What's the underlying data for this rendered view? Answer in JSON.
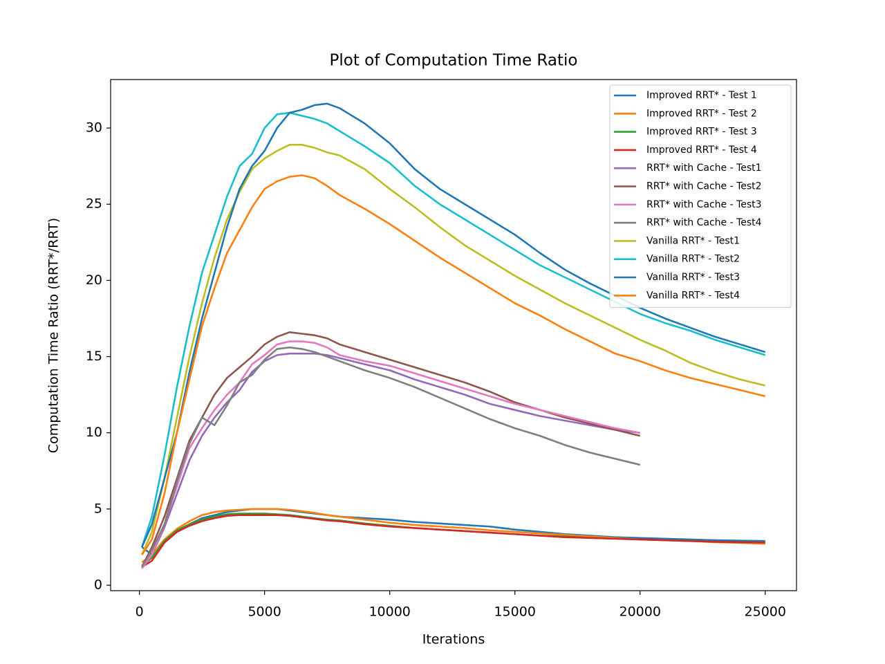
{
  "chart_data": {
    "type": "line",
    "title": "Plot of Computation Time Ratio",
    "x_label": "Iterations",
    "y_label": "Computation Time Ratio (RRT*/RRT)",
    "x": [
      100,
      500,
      1000,
      1500,
      2000,
      2500,
      3000,
      3500,
      4000,
      4500,
      5000,
      5500,
      6000,
      6500,
      7000,
      7500,
      8000,
      9000,
      10000,
      11000,
      12000,
      13000,
      14000,
      15000,
      16000,
      17000,
      18000,
      19000,
      20000,
      21000,
      22000,
      23000,
      24000,
      25000
    ],
    "xlim": [
      -1150,
      26250
    ],
    "xticks": [
      0,
      5000,
      10000,
      15000,
      20000,
      25000
    ],
    "ylim": [
      -0.36,
      33.18
    ],
    "yticks": [
      0,
      5,
      10,
      15,
      20,
      25,
      30
    ],
    "grid": false,
    "legend": "upper right",
    "series": [
      {
        "name": "Improved RRT* - Test 1",
        "color": "#1f77b4",
        "values": [
          2.5,
          2,
          2.8,
          3.5,
          4,
          4.4,
          4.6,
          4.8,
          4.9,
          5,
          5,
          5,
          4.9,
          4.8,
          4.7,
          4.6,
          4.5,
          4.4,
          4.3,
          4.15,
          4.05,
          3.95,
          3.85,
          3.65,
          3.5,
          3.35,
          3.25,
          3.15,
          3.1,
          3.05,
          3,
          2.95,
          2.92,
          2.9
        ]
      },
      {
        "name": "Improved RRT* - Test 2",
        "color": "#ff7f0e",
        "values": [
          1.5,
          2,
          3,
          3.7,
          4.2,
          4.6,
          4.8,
          4.9,
          4.95,
          5,
          5,
          5,
          4.95,
          4.85,
          4.75,
          4.6,
          4.5,
          4.3,
          4.1,
          3.95,
          3.85,
          3.75,
          3.6,
          3.5,
          3.4,
          3.3,
          3.2,
          3.1,
          3,
          2.95,
          2.9,
          2.82,
          2.78,
          2.72
        ]
      },
      {
        "name": "Improved RRT* - Test 3",
        "color": "#2ca02c",
        "values": [
          1.3,
          1.8,
          2.9,
          3.6,
          4,
          4.3,
          4.5,
          4.65,
          4.7,
          4.7,
          4.7,
          4.65,
          4.6,
          4.5,
          4.4,
          4.3,
          4.25,
          4.05,
          3.9,
          3.75,
          3.65,
          3.55,
          3.45,
          3.35,
          3.25,
          3.2,
          3.1,
          3.05,
          3,
          2.95,
          2.9,
          2.85,
          2.82,
          2.8
        ]
      },
      {
        "name": "Improved RRT* - Test 4",
        "color": "#d62728",
        "values": [
          1.2,
          1.6,
          2.8,
          3.5,
          3.9,
          4.2,
          4.4,
          4.55,
          4.6,
          4.6,
          4.6,
          4.6,
          4.55,
          4.45,
          4.35,
          4.25,
          4.2,
          4,
          3.85,
          3.75,
          3.65,
          3.55,
          3.45,
          3.35,
          3.25,
          3.15,
          3.1,
          3.05,
          3,
          2.95,
          2.9,
          2.85,
          2.82,
          2.8
        ]
      },
      {
        "name": "RRT* with Cache - Test1",
        "color": "#9467bd",
        "values": [
          1.1,
          2,
          3.8,
          6,
          8.2,
          9.8,
          11,
          12,
          12.8,
          14,
          14.7,
          15.1,
          15.2,
          15.2,
          15.2,
          15.1,
          14.9,
          14.5,
          14.1,
          13.5,
          13,
          12.5,
          11.9,
          11.5,
          11.1,
          10.8,
          10.5,
          10.2,
          10,
          null,
          null,
          null,
          null,
          null
        ]
      },
      {
        "name": "RRT* with Cache - Test2",
        "color": "#8c564b",
        "values": [
          1.2,
          2.5,
          4.5,
          7,
          9.5,
          11,
          12.5,
          13.6,
          14.3,
          15,
          15.8,
          16.3,
          16.6,
          16.5,
          16.4,
          16.2,
          15.8,
          15.3,
          14.8,
          14.3,
          13.8,
          13.3,
          12.7,
          12,
          11.5,
          11,
          10.6,
          10.2,
          9.8,
          null,
          null,
          null,
          null,
          null
        ]
      },
      {
        "name": "RRT* with Cache - Test3",
        "color": "#e377c2",
        "values": [
          1.1,
          2,
          4,
          6.5,
          9,
          10.3,
          11.5,
          12.5,
          13.3,
          14.5,
          15.1,
          15.8,
          16,
          16,
          15.9,
          15.6,
          15.1,
          14.7,
          14.4,
          13.9,
          13.4,
          12.9,
          12.4,
          11.9,
          11.5,
          11.1,
          10.7,
          10.3,
          10,
          null,
          null,
          null,
          null,
          null
        ]
      },
      {
        "name": "RRT* with Cache - Test4",
        "color": "#7f7f7f",
        "values": [
          1.2,
          2.3,
          4,
          6.8,
          9.3,
          11,
          10.5,
          11.8,
          13.3,
          13.8,
          14.8,
          15.5,
          15.6,
          15.5,
          15.3,
          15,
          14.7,
          14.1,
          13.6,
          13,
          12.3,
          11.6,
          10.9,
          10.3,
          9.8,
          9.2,
          8.7,
          8.3,
          7.9,
          null,
          null,
          null,
          null,
          null
        ]
      },
      {
        "name": "Vanilla RRT* - Test1",
        "color": "#bcbd22",
        "values": [
          2,
          3.5,
          7,
          11,
          15,
          18.5,
          21.5,
          24,
          25.8,
          27.3,
          28,
          28.5,
          28.9,
          28.9,
          28.7,
          28.4,
          28.2,
          27.3,
          26,
          24.8,
          23.5,
          22.3,
          21.3,
          20.3,
          19.4,
          18.5,
          17.7,
          16.9,
          16.1,
          15.4,
          14.6,
          14,
          13.5,
          13.1
        ]
      },
      {
        "name": "Vanilla RRT* - Test2",
        "color": "#17becf",
        "values": [
          2.5,
          4.5,
          8.5,
          13,
          17,
          20.5,
          23,
          25.5,
          27.5,
          28.3,
          30,
          30.9,
          31,
          30.8,
          30.6,
          30.3,
          29.8,
          28.8,
          27.7,
          26.2,
          25,
          24,
          23,
          22,
          21,
          20.2,
          19.4,
          18.6,
          17.8,
          17.2,
          16.7,
          16.1,
          15.6,
          15.1
        ]
      },
      {
        "name": "Vanilla RRT* - Test3",
        "color": "#1f77b4",
        "values": [
          2.5,
          4,
          7,
          10,
          14,
          17.5,
          20.5,
          23.5,
          26,
          27.5,
          28.5,
          30,
          31,
          31.2,
          31.5,
          31.6,
          31.3,
          30.3,
          29,
          27.3,
          26,
          25,
          24,
          23,
          21.8,
          20.7,
          19.8,
          19,
          18.2,
          17.5,
          16.9,
          16.3,
          15.8,
          15.3
        ]
      },
      {
        "name": "Vanilla RRT* - Test4",
        "color": "#ff7f0e",
        "values": [
          2,
          3,
          6,
          10,
          13.5,
          17,
          19.5,
          21.8,
          23.3,
          24.8,
          26,
          26.5,
          26.8,
          26.9,
          26.7,
          26.2,
          25.6,
          24.7,
          23.7,
          22.6,
          21.5,
          20.5,
          19.5,
          18.5,
          17.7,
          16.8,
          16,
          15.2,
          14.7,
          14.1,
          13.6,
          13.2,
          12.8,
          12.4
        ]
      }
    ]
  }
}
